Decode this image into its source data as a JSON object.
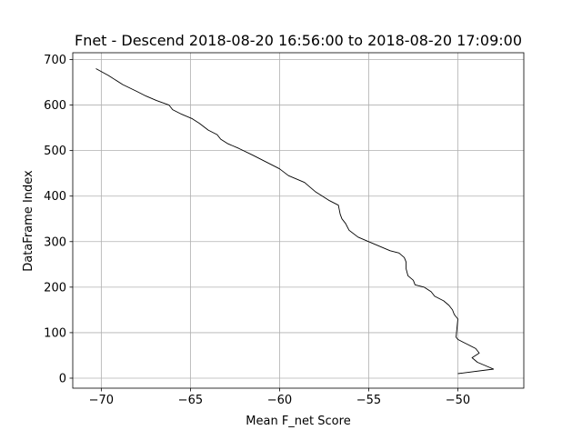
{
  "chart_data": {
    "type": "line",
    "title": "Fnet - Descend 2018-08-20 16:56:00 to 2018-08-20 17:09:00",
    "xlabel": "Mean F_net Score",
    "ylabel": "DataFrame Index",
    "xlim": [
      -71.6,
      -46.3
    ],
    "ylim": [
      -22,
      715
    ],
    "xticks": [
      -70,
      -65,
      -60,
      -55,
      -50
    ],
    "xtick_labels": [
      "−70",
      "−65",
      "−60",
      "−55",
      "−50"
    ],
    "yticks": [
      0,
      100,
      200,
      300,
      400,
      500,
      600,
      700
    ],
    "ytick_labels": [
      "0",
      "100",
      "200",
      "300",
      "400",
      "500",
      "600",
      "700"
    ],
    "grid": true,
    "legend": "none",
    "line_color": "#000000",
    "grid_color": "#b0b0b0",
    "series": [
      {
        "x": [
          -50.0,
          -48.0,
          -48.9,
          -49.2,
          -48.8,
          -49.0,
          -49.5,
          -50.0,
          -50.1,
          -50.05,
          -50.0,
          -50.2,
          -50.3,
          -50.5,
          -50.8,
          -51.3,
          -51.5,
          -51.9,
          -52.4,
          -52.5,
          -52.8,
          -52.9,
          -52.9,
          -53.0,
          -53.3,
          -53.8,
          -54.4,
          -55.0,
          -55.6,
          -56.1,
          -56.3,
          -56.5,
          -56.6,
          -56.7,
          -57.2,
          -57.6,
          -58.0,
          -58.3,
          -58.6,
          -59.5,
          -60.0,
          -61.0,
          -61.5,
          -62.3,
          -62.9,
          -63.3,
          -63.5,
          -64.0,
          -64.5,
          -64.9,
          -65.5,
          -66.0,
          -66.2,
          -66.9,
          -67.5,
          -68.0,
          -68.8,
          -69.6,
          -70.3
        ],
        "y": [
          10,
          20,
          35,
          45,
          55,
          65,
          75,
          85,
          90,
          110,
          130,
          140,
          150,
          160,
          170,
          180,
          190,
          200,
          205,
          215,
          225,
          240,
          255,
          265,
          275,
          280,
          290,
          300,
          310,
          325,
          340,
          350,
          360,
          380,
          390,
          400,
          410,
          420,
          430,
          445,
          460,
          480,
          490,
          505,
          515,
          525,
          535,
          545,
          560,
          570,
          580,
          590,
          600,
          610,
          620,
          630,
          645,
          665,
          680
        ]
      }
    ]
  }
}
